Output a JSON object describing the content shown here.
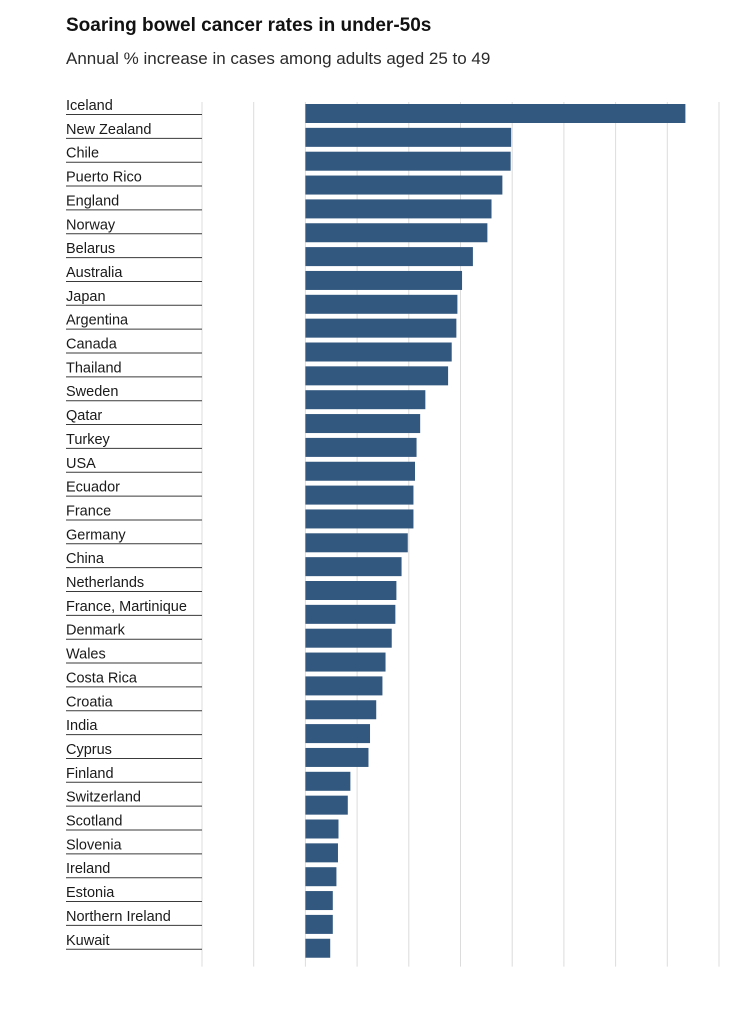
{
  "chart_data": {
    "type": "bar",
    "orientation": "horizontal",
    "title": "Soaring bowel cancer rates in under-50s",
    "subtitle": "Annual % increase in cases among adults aged 25 to 49",
    "xlabel": "",
    "ylabel": "",
    "grid": true,
    "legend": "none",
    "bar_color": "#33587f",
    "grid_color": "#dcdcdc",
    "categories": [
      "Iceland",
      "New Zealand",
      "Chile",
      "Puerto Rico",
      "England",
      "Norway",
      "Belarus",
      "Australia",
      "Japan",
      "Argentina",
      "Canada",
      "Thailand",
      "Sweden",
      "Qatar",
      "Turkey",
      "USA",
      "Ecuador",
      "France",
      "Germany",
      "China",
      "Netherlands",
      "France, Martinique",
      "Denmark",
      "Wales",
      "Costa Rica",
      "Croatia",
      "India",
      "Cyprus",
      "Finland",
      "Switzerland",
      "Scotland",
      "Slovenia",
      "Ireland",
      "Estonia",
      "Northern Ireland",
      "Kuwait"
    ],
    "values": [
      7.35,
      3.98,
      3.97,
      3.81,
      3.6,
      3.52,
      3.24,
      3.03,
      2.94,
      2.92,
      2.83,
      2.76,
      2.32,
      2.22,
      2.15,
      2.12,
      2.09,
      2.09,
      1.98,
      1.86,
      1.76,
      1.74,
      1.67,
      1.55,
      1.49,
      1.37,
      1.25,
      1.22,
      0.87,
      0.82,
      0.64,
      0.63,
      0.6,
      0.53,
      0.53,
      0.48
    ],
    "xlim": [
      -2,
      8
    ]
  }
}
